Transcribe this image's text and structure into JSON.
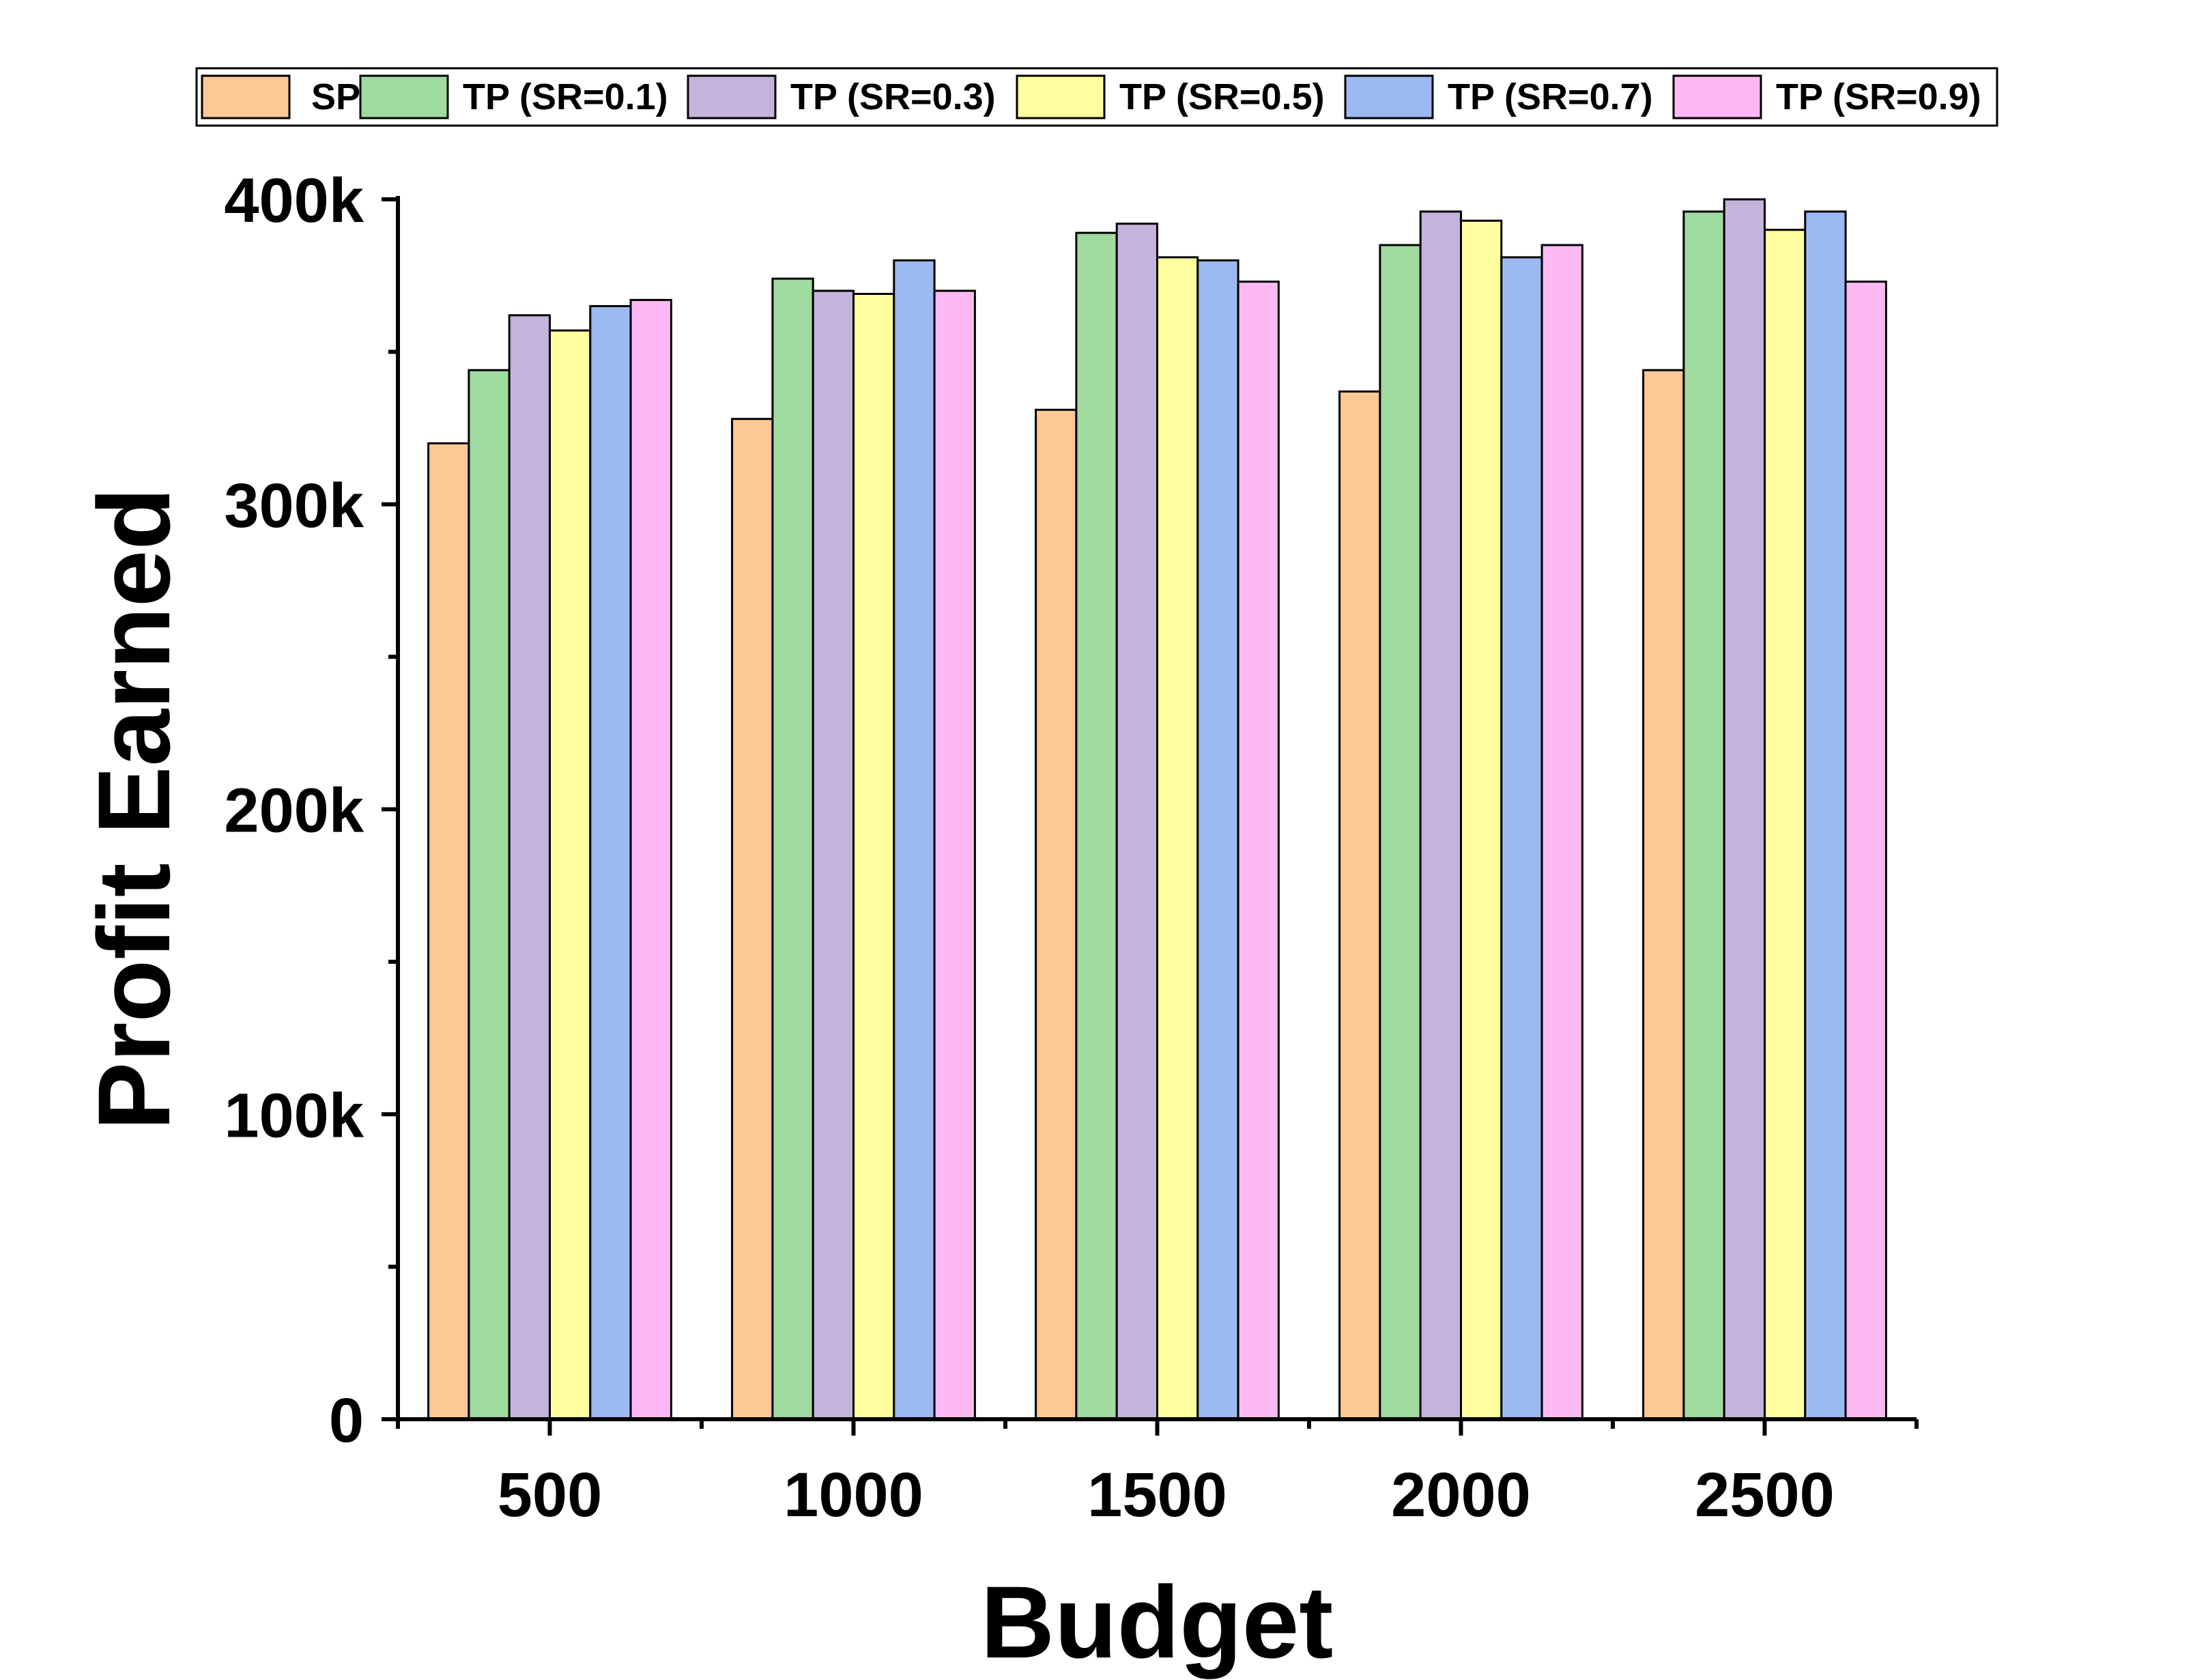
{
  "chart_data": {
    "type": "bar",
    "xlabel": "Budget",
    "ylabel": "Profit Earned",
    "categories": [
      "500",
      "1000",
      "1500",
      "2000",
      "2500"
    ],
    "ylim": [
      0,
      400000
    ],
    "yticks": [
      0,
      100000,
      200000,
      300000,
      400000
    ],
    "ytick_labels": [
      "0",
      "100k",
      "200k",
      "300k",
      "400k"
    ],
    "minor_ticks": true,
    "grid": false,
    "legend_placement": "top",
    "series": [
      {
        "name": "SP",
        "color": "#FDC896",
        "values": [
          320000,
          328000,
          331000,
          337000,
          344000
        ]
      },
      {
        "name": "TP (SR=0.1)",
        "color": "#9FDA9E",
        "values": [
          344000,
          374000,
          389000,
          385000,
          396000
        ]
      },
      {
        "name": "TP (SR=0.3)",
        "color": "#C4B3DA",
        "values": [
          362000,
          370000,
          392000,
          396000,
          400000
        ]
      },
      {
        "name": "TP (SR=0.5)",
        "color": "#FFFF9F",
        "values": [
          357000,
          369000,
          381000,
          393000,
          390000
        ]
      },
      {
        "name": "TP (SR=0.7)",
        "color": "#9CB9F2",
        "values": [
          365000,
          380000,
          380000,
          381000,
          396000
        ]
      },
      {
        "name": "TP (SR=0.9)",
        "color": "#FEB9F4",
        "values": [
          367000,
          370000,
          373000,
          385000,
          373000
        ]
      }
    ]
  }
}
